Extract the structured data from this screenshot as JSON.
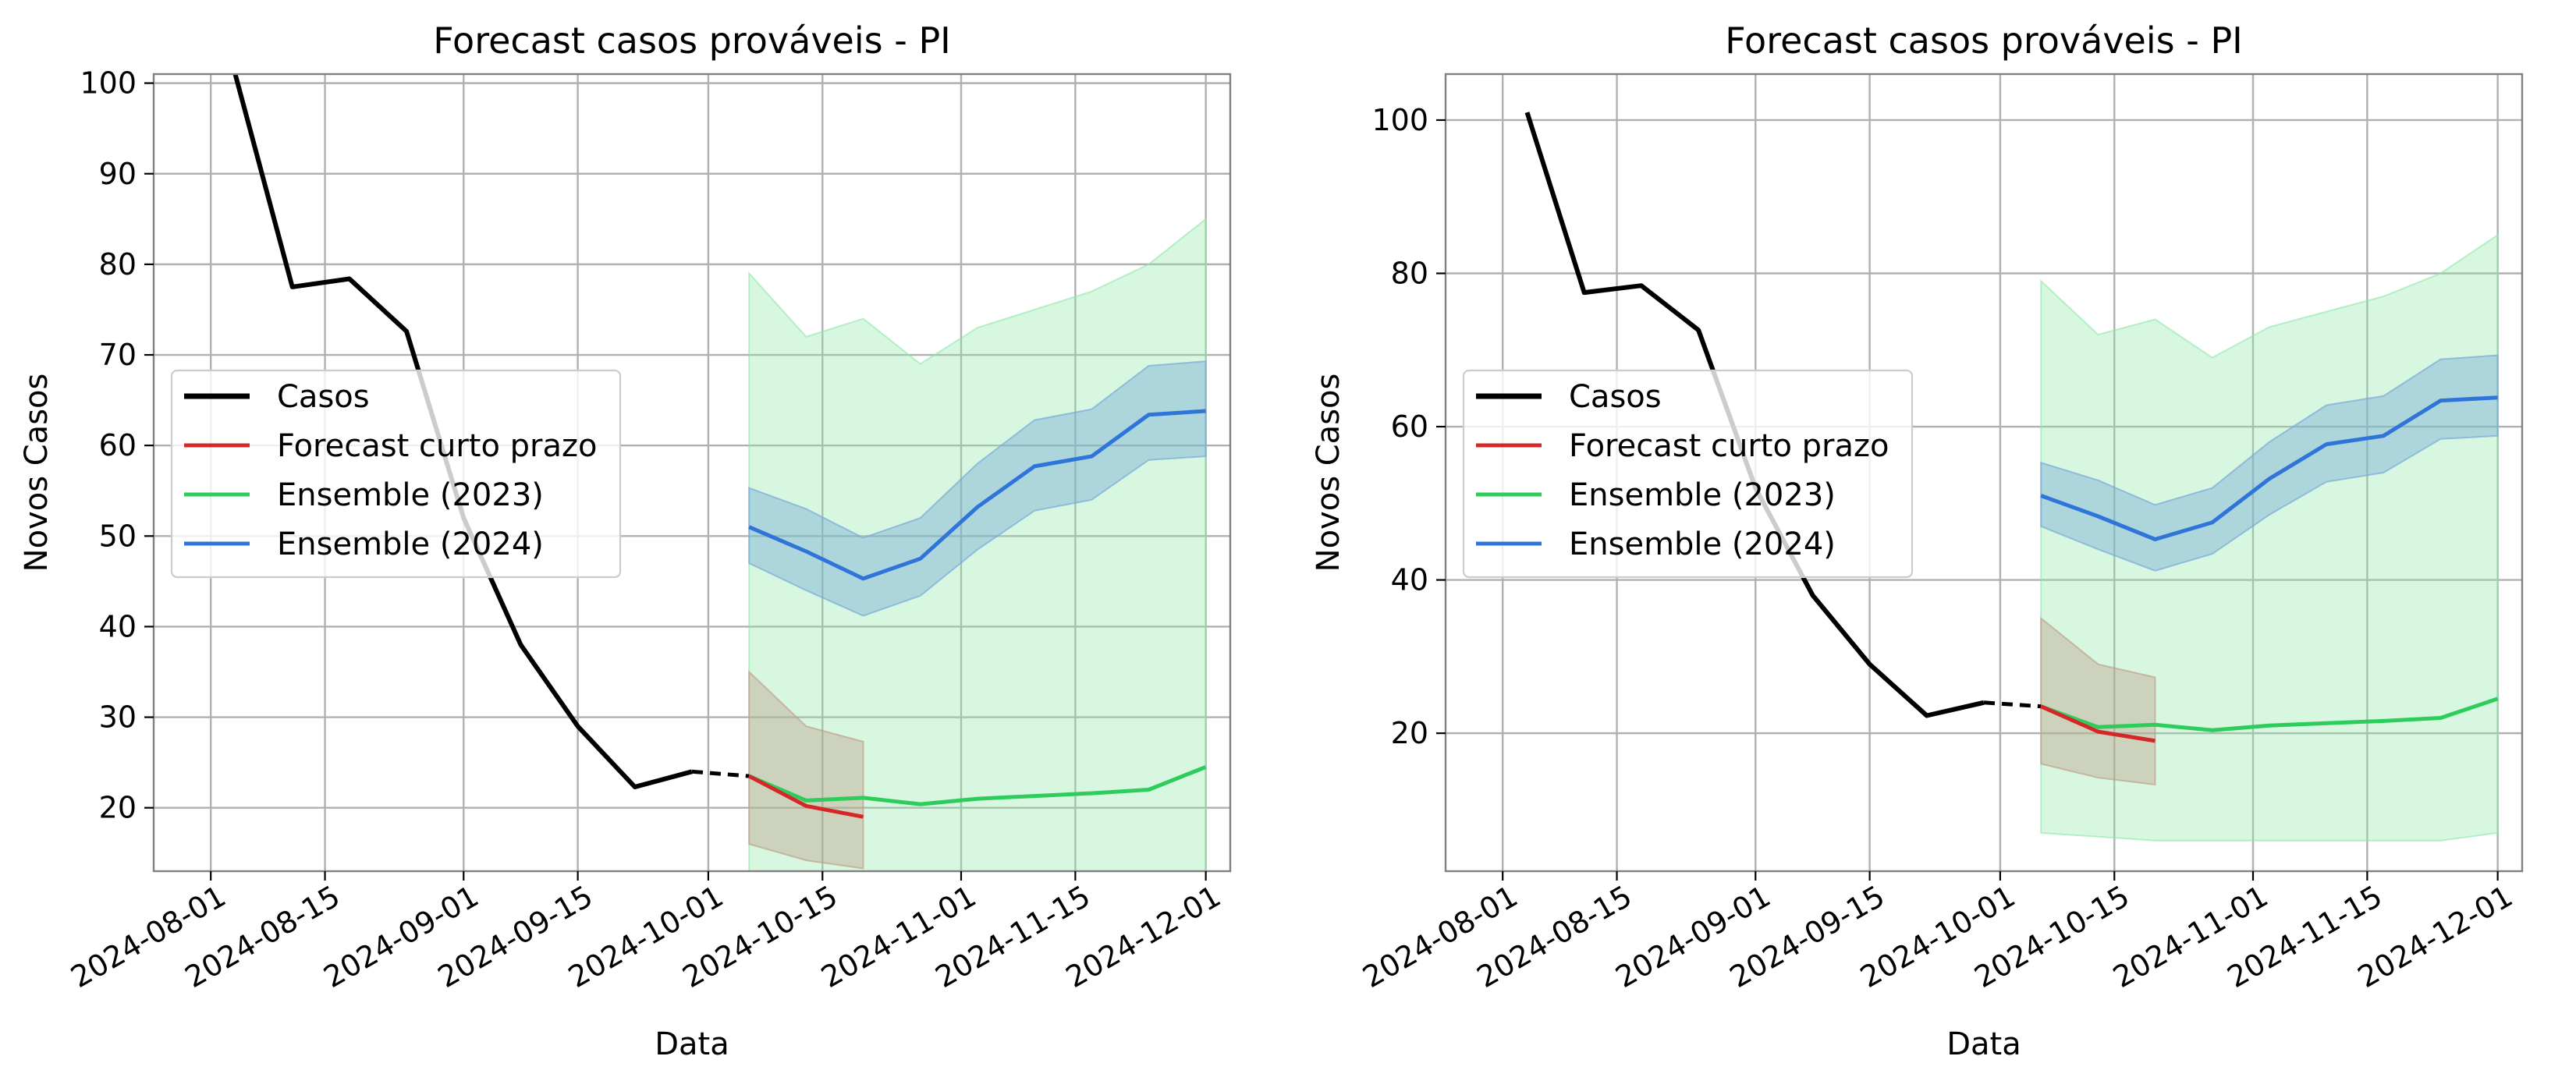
{
  "chart_data": [
    {
      "type": "line",
      "title": "Forecast casos prováveis - PI",
      "xlabel": "Data",
      "ylabel": "Novos Casos",
      "xlim": [
        "2024-07-25",
        "2024-12-04"
      ],
      "ylim": [
        13,
        101
      ],
      "yticks": [
        20,
        30,
        40,
        50,
        60,
        70,
        80,
        90,
        100
      ],
      "xticks": [
        "2024-08-01",
        "2024-08-15",
        "2024-09-01",
        "2024-09-15",
        "2024-10-01",
        "2024-10-15",
        "2024-11-01",
        "2024-11-15",
        "2024-12-01"
      ],
      "grid": true,
      "legend_position": "center-left",
      "legend": [
        "Casos",
        "Forecast curto prazo",
        "Ensemble (2023)",
        "Ensemble (2024)"
      ]
    },
    {
      "type": "line",
      "title": "Forecast casos prováveis - PI",
      "xlabel": "Data",
      "ylabel": "Novos Casos",
      "xlim": [
        "2024-07-25",
        "2024-12-04"
      ],
      "ylim": [
        2,
        106
      ],
      "yticks": [
        20,
        40,
        60,
        80,
        100
      ],
      "xticks": [
        "2024-08-01",
        "2024-08-15",
        "2024-09-01",
        "2024-09-15",
        "2024-10-01",
        "2024-10-15",
        "2024-11-01",
        "2024-11-15",
        "2024-12-01"
      ],
      "grid": true,
      "legend_position": "center-left",
      "legend": [
        "Casos",
        "Forecast curto prazo",
        "Ensemble (2023)",
        "Ensemble (2024)"
      ]
    }
  ],
  "shared_series": {
    "casos": {
      "name": "Casos",
      "color": "#000000",
      "x": [
        "2024-08-04",
        "2024-08-11",
        "2024-08-18",
        "2024-08-25",
        "2024-09-01",
        "2024-09-08",
        "2024-09-15",
        "2024-09-22",
        "2024-09-29"
      ],
      "y": [
        101,
        77.5,
        78.4,
        72.6,
        52,
        38,
        29,
        22.3,
        24
      ]
    },
    "casos_link": {
      "color": "#000000",
      "x": [
        "2024-09-29",
        "2024-10-06"
      ],
      "y": [
        24,
        23.5
      ]
    },
    "forecast": {
      "name": "Forecast curto prazo",
      "color": "#d62728",
      "x": [
        "2024-10-06",
        "2024-10-13",
        "2024-10-20"
      ],
      "y": [
        23.5,
        20.2,
        19
      ],
      "lower": [
        16,
        14.2,
        13.3
      ],
      "upper": [
        35,
        29,
        27.3
      ],
      "band_color": "#bfa08a"
    },
    "ensemble_2023": {
      "name": "Ensemble (2023)",
      "color": "#2ecc5a",
      "x": [
        "2024-10-06",
        "2024-10-13",
        "2024-10-20",
        "2024-10-27",
        "2024-11-03",
        "2024-11-10",
        "2024-11-17",
        "2024-11-24",
        "2024-12-01"
      ],
      "y": [
        23.5,
        20.8,
        21.1,
        20.4,
        21,
        21.3,
        21.6,
        22,
        24.5
      ],
      "lower": [
        7,
        6.5,
        6,
        6,
        6,
        6,
        6,
        6,
        7
      ],
      "upper": [
        79,
        72,
        74,
        69,
        73,
        75,
        77,
        80,
        85
      ],
      "band_color": "#8ee8a8"
    },
    "ensemble_2024": {
      "name": "Ensemble (2024)",
      "color": "#2f74d9",
      "x": [
        "2024-10-06",
        "2024-10-13",
        "2024-10-20",
        "2024-10-27",
        "2024-11-03",
        "2024-11-10",
        "2024-11-17",
        "2024-11-24",
        "2024-12-01"
      ],
      "y": [
        51,
        48.3,
        45.3,
        47.5,
        53.2,
        57.7,
        58.8,
        63.4,
        63.8
      ],
      "lower": [
        47,
        44,
        41.2,
        43.4,
        48.5,
        52.8,
        54,
        58.4,
        58.8
      ],
      "upper": [
        55.3,
        53,
        49.8,
        52,
        58,
        62.8,
        64,
        68.8,
        69.3
      ],
      "band_color": "#7aaad8"
    }
  }
}
